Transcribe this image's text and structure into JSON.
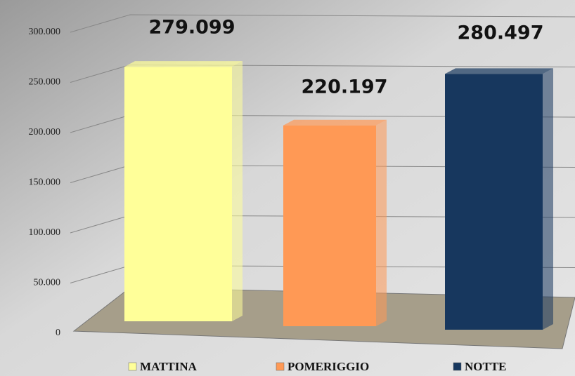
{
  "chart_data": {
    "type": "bar3d",
    "series": [
      {
        "name": "MATTINA",
        "color": "#ffff99",
        "values": [
          279099
        ],
        "value_labels": [
          "279.099"
        ]
      },
      {
        "name": "POMERIGGIO",
        "color": "#ff9955",
        "values": [
          220197
        ],
        "value_labels": [
          "220.197"
        ]
      },
      {
        "name": "NOTTE",
        "color": "#17375e",
        "values": [
          280497
        ],
        "value_labels": [
          "280.497"
        ]
      }
    ],
    "ylim": [
      0,
      300000
    ],
    "yticks": [
      0,
      {
        "value": 50000,
        "label": "50.000"
      },
      {
        "value": 100000,
        "label": "100.000"
      },
      {
        "value": 150000,
        "label": "150.000"
      },
      {
        "value": 200000,
        "label": "200.000"
      },
      {
        "value": 250000,
        "label": "250.000"
      },
      {
        "value": 300000,
        "label": "300.000"
      }
    ],
    "grid": true,
    "legend": "bottom"
  }
}
